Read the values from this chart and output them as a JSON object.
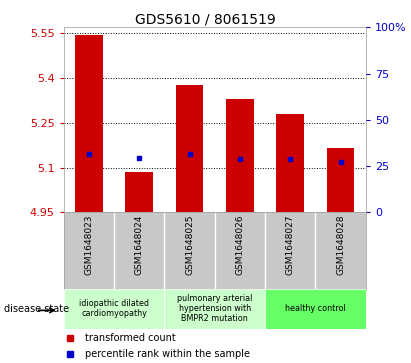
{
  "title": "GDS5610 / 8061519",
  "samples": [
    "GSM1648023",
    "GSM1648024",
    "GSM1648025",
    "GSM1648026",
    "GSM1648027",
    "GSM1648028"
  ],
  "bar_tops": [
    5.545,
    5.085,
    5.375,
    5.33,
    5.28,
    5.165
  ],
  "bar_bottom": 4.95,
  "blue_dots": [
    5.145,
    5.133,
    5.145,
    5.13,
    5.13,
    5.12
  ],
  "ylim": [
    4.95,
    5.57
  ],
  "yticks_left": [
    4.95,
    5.1,
    5.25,
    5.4,
    5.55
  ],
  "ytick_labels_left": [
    "4.95",
    "5.1",
    "5.25",
    "5.4",
    "5.55"
  ],
  "right_yticks_pct": [
    0,
    25,
    50,
    75,
    100
  ],
  "right_ytick_labels": [
    "0",
    "25",
    "50",
    "75",
    "100%"
  ],
  "bar_color": "#cc0000",
  "dot_color": "#0000cc",
  "bg_color": "#ffffff",
  "left_tick_color": "#cc0000",
  "right_tick_color": "#0000cc",
  "xtick_bg_color": "#c8c8c8",
  "group_colors": [
    "#ccffcc",
    "#ccffcc",
    "#66ff66"
  ],
  "group_labels": [
    "idiopathic dilated\ncardiomyopathy",
    "pulmonary arterial\nhypertension with\nBMPR2 mutation",
    "healthy control"
  ],
  "group_ranges": [
    [
      0,
      1
    ],
    [
      2,
      3
    ],
    [
      4,
      5
    ]
  ],
  "legend_labels": [
    "transformed count",
    "percentile rank within the sample"
  ],
  "legend_colors": [
    "#cc0000",
    "#0000cc"
  ],
  "disease_state_label": "disease state"
}
